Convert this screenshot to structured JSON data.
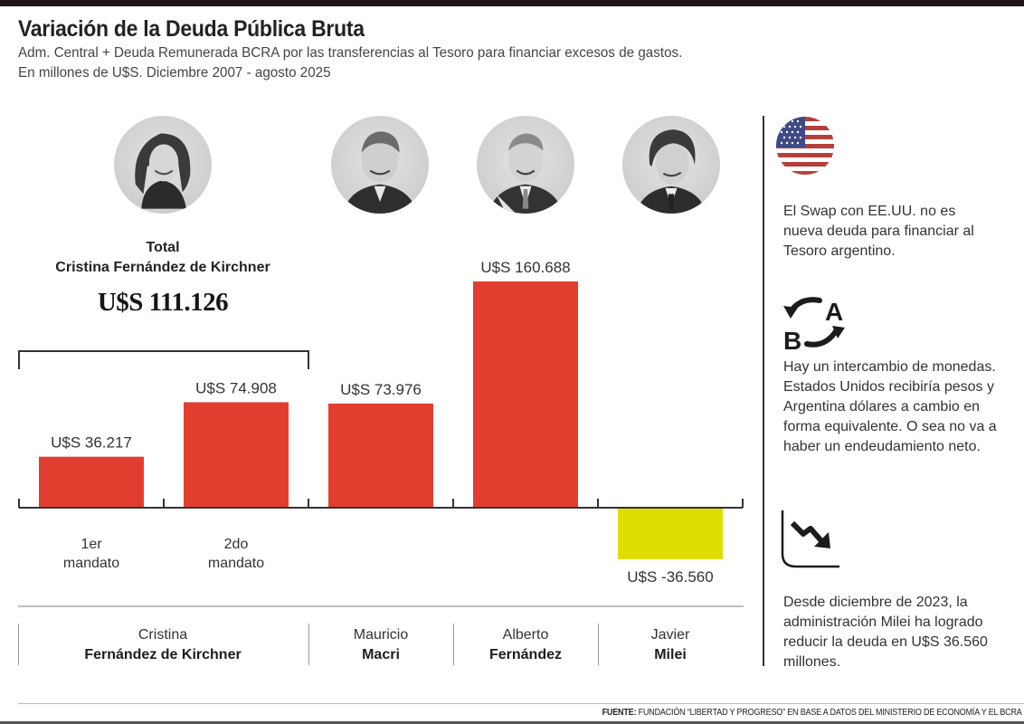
{
  "header": {
    "title": "Variación de la Deuda Pública Bruta",
    "subtitle_line1": "Adm. Central + Deuda Remunerada BCRA por las transferencias al Tesoro para financiar excesos de gastos.",
    "subtitle_line2": "En millones de U$S. Diciembre 2007 - agosto 2025"
  },
  "total_box": {
    "label": "Total",
    "name": "Cristina Fernández de Kirchner",
    "value": "U$S 111.126"
  },
  "presidents": [
    {
      "first": "Cristina",
      "last": "Fernández de Kirchner",
      "portrait": "portrait-cfk"
    },
    {
      "first": "Mauricio",
      "last": "Macri",
      "portrait": "portrait-macri"
    },
    {
      "first": "Alberto",
      "last": "Fernández",
      "portrait": "portrait-alberto"
    },
    {
      "first": "Javier",
      "last": "Milei",
      "portrait": "portrait-milei"
    }
  ],
  "colors": {
    "positive": "#e23e2f",
    "negative": "#dede00",
    "axis": "#333333"
  },
  "chart_data": {
    "type": "bar",
    "title": "Variación de la Deuda Pública Bruta",
    "xlabel": "",
    "ylabel": "En millones de U$S",
    "categories": [
      "1er mandato",
      "2do mandato",
      "Macri",
      "Alberto Fernández",
      "Milei"
    ],
    "category_labels": [
      [
        "1er",
        "mandato"
      ],
      [
        "2do",
        "mandato"
      ],
      [],
      [],
      []
    ],
    "values": [
      36217,
      74908,
      73976,
      160688,
      -36560
    ],
    "value_labels": [
      "U$S 36.217",
      "U$S 74.908",
      "U$S 73.976",
      "U$S 160.688",
      "U$S -36.560"
    ],
    "ylim": [
      -36560,
      160688
    ],
    "grid": false,
    "legend": "none"
  },
  "sidebar": {
    "notes": [
      {
        "icon": "us-flag-icon",
        "text": "El Swap con EE.UU. no es nueva deuda para financiar al Tesoro argentino."
      },
      {
        "icon": "currency-exchange-icon",
        "letter_a": "A",
        "letter_b": "B",
        "text": "Hay un intercambio de monedas. Estados Unidos recibiría pesos y Argentina dólares a cambio en forma equivalente. O sea no va a haber un endeudamiento neto."
      },
      {
        "icon": "trend-down-icon",
        "text": "Desde diciembre de 2023, la administración Milei ha logrado reducir la deuda en U$S 36.560 millones."
      }
    ]
  },
  "footer": {
    "label": "FUENTE:",
    "text": " FUNDACIÓN “LIBERTAD Y PROGRESO” EN BASE A DATOS DEL MINISTERIO DE ECONOMÍA Y EL BCRA"
  }
}
